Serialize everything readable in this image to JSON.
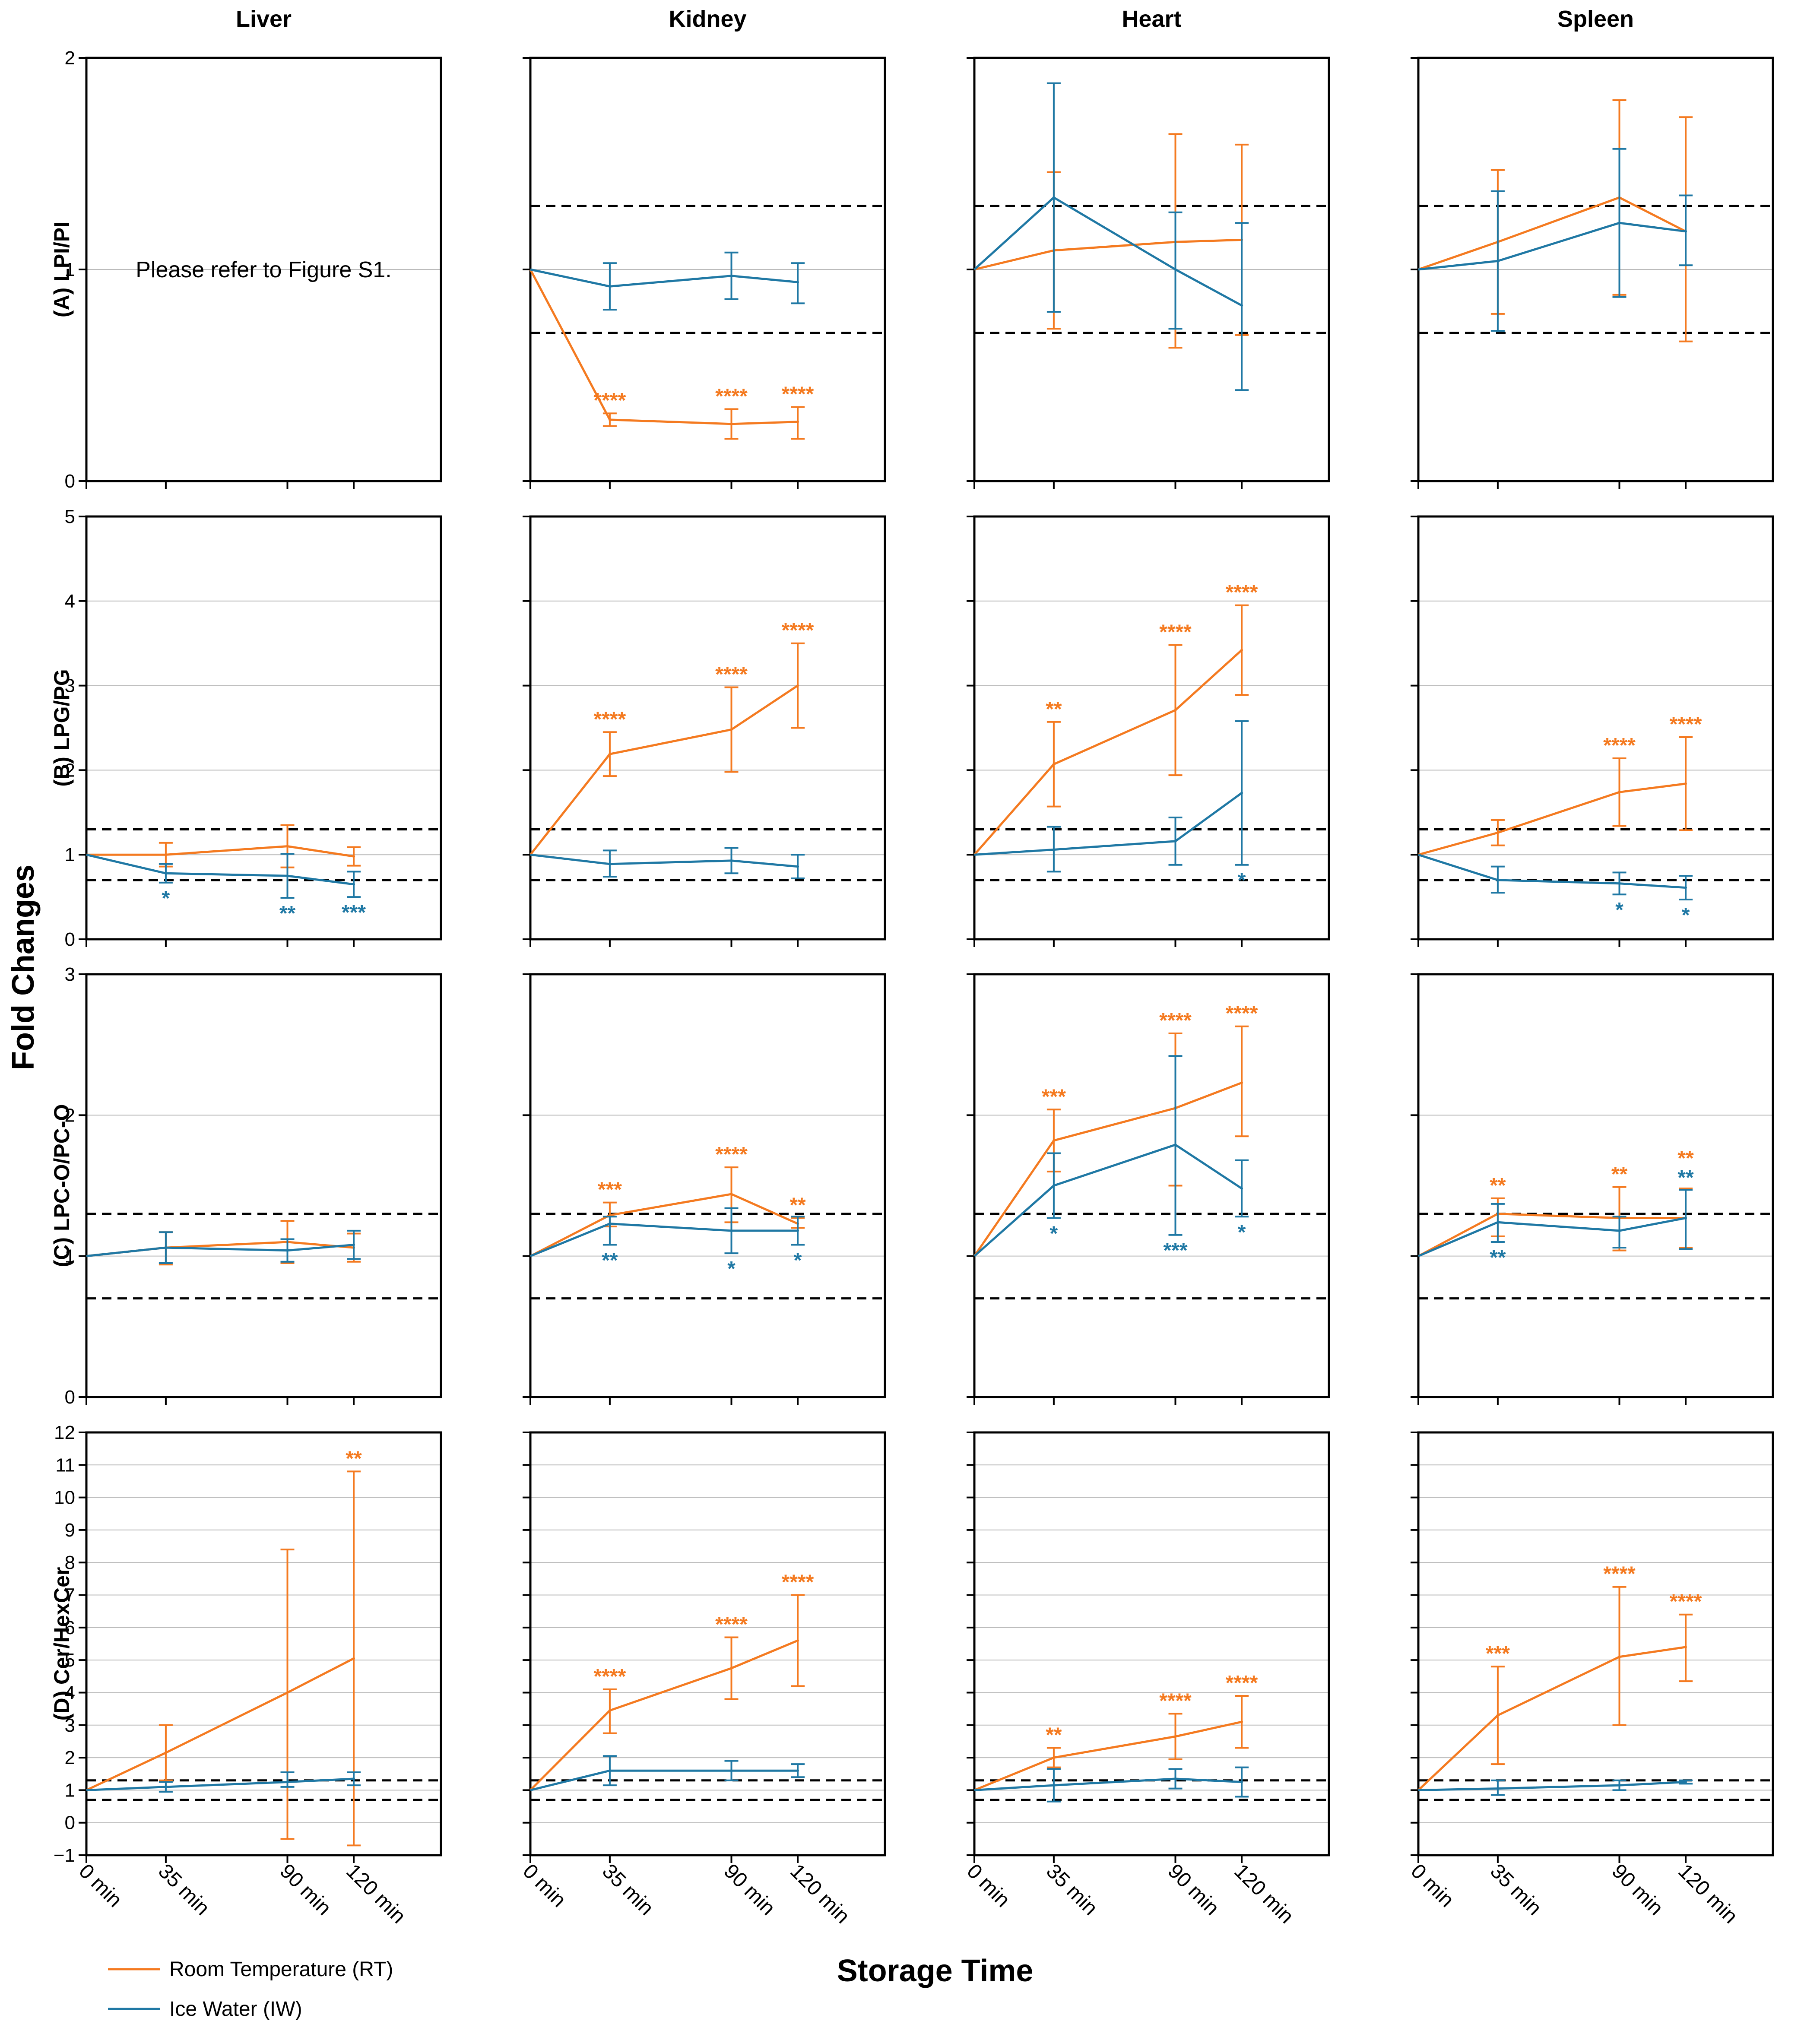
{
  "colors": {
    "rt": "#f47a20",
    "iw": "#1f78a4",
    "grid": "#bbbbbb",
    "threshold": "#000000"
  },
  "y_axis_title": "Fold Changes",
  "x_axis_title": "Storage Time",
  "legend": [
    {
      "label": "Room Temperature (RT)",
      "color": "#f47a20"
    },
    {
      "label": "Ice Water (IW)",
      "color": "#1f78a4"
    }
  ],
  "chart_data": {
    "type": "line",
    "columns": [
      "Liver",
      "Kidney",
      "Heart",
      "Spleen"
    ],
    "rows": [
      {
        "label": "(A) LPI/PI",
        "ylim": [
          0,
          2
        ],
        "ticks": [
          0,
          1,
          2
        ]
      },
      {
        "label": "(B) LPG/PG",
        "ylim": [
          0,
          5
        ],
        "ticks": [
          0,
          1,
          2,
          3,
          4,
          5
        ]
      },
      {
        "label": "(C) LPC-O/PC-O",
        "ylim": [
          0,
          3
        ],
        "ticks": [
          0,
          1,
          2,
          3
        ]
      },
      {
        "label": "(D) Cer/HexCer",
        "ylim": [
          -1,
          12
        ],
        "ticks": [
          -1,
          0,
          1,
          2,
          3,
          4,
          5,
          6,
          7,
          8,
          9,
          10,
          11,
          12
        ]
      }
    ],
    "x": [
      0,
      35,
      90,
      120
    ],
    "x_tick_labels": [
      "0 min",
      "35 min",
      "90 min",
      "120 min"
    ],
    "thresholds": [
      0.7,
      1.3
    ],
    "panels": [
      {
        "row": 0,
        "col": 0,
        "note": "Please refer to Figure S1.",
        "series": []
      },
      {
        "row": 0,
        "col": 1,
        "series": [
          {
            "name": "Room Temperature (RT)",
            "values": [
              1,
              0.29,
              0.27,
              0.28
            ],
            "lo": [
              1,
              0.26,
              0.2,
              0.2
            ],
            "hi": [
              1,
              0.32,
              0.34,
              0.35
            ],
            "stars": [
              "",
              "****",
              "****",
              "****"
            ]
          },
          {
            "name": "Ice Water (IW)",
            "values": [
              1,
              0.92,
              0.97,
              0.94
            ],
            "lo": [
              1,
              0.81,
              0.86,
              0.84
            ],
            "hi": [
              1,
              1.03,
              1.08,
              1.03
            ],
            "stars": [
              "",
              "",
              "",
              ""
            ]
          }
        ]
      },
      {
        "row": 0,
        "col": 2,
        "series": [
          {
            "name": "Room Temperature (RT)",
            "values": [
              1,
              1.09,
              1.13,
              1.14
            ],
            "lo": [
              1,
              0.72,
              0.63,
              0.69
            ],
            "hi": [
              1,
              1.46,
              1.64,
              1.59
            ],
            "stars": [
              "",
              "",
              "",
              ""
            ]
          },
          {
            "name": "Ice Water (IW)",
            "values": [
              1,
              1.34,
              1.0,
              0.83
            ],
            "lo": [
              1,
              0.8,
              0.72,
              0.43
            ],
            "hi": [
              1,
              1.88,
              1.27,
              1.22
            ],
            "stars": [
              "",
              "",
              "",
              ""
            ]
          }
        ]
      },
      {
        "row": 0,
        "col": 3,
        "series": [
          {
            "name": "Room Temperature (RT)",
            "values": [
              1,
              1.13,
              1.34,
              1.18
            ],
            "lo": [
              1,
              0.79,
              0.88,
              0.66
            ],
            "hi": [
              1,
              1.47,
              1.8,
              1.72
            ],
            "stars": [
              "",
              "",
              "",
              ""
            ]
          },
          {
            "name": "Ice Water (IW)",
            "values": [
              1,
              1.04,
              1.22,
              1.18
            ],
            "lo": [
              1,
              0.71,
              0.87,
              1.02
            ],
            "hi": [
              1,
              1.37,
              1.57,
              1.35
            ],
            "stars": [
              "",
              "",
              "",
              ""
            ]
          }
        ]
      },
      {
        "row": 1,
        "col": 0,
        "series": [
          {
            "name": "Room Temperature (RT)",
            "values": [
              1,
              1.0,
              1.1,
              0.98
            ],
            "lo": [
              1,
              0.86,
              0.85,
              0.87
            ],
            "hi": [
              1,
              1.14,
              1.35,
              1.09
            ],
            "stars": [
              "",
              "",
              "",
              ""
            ]
          },
          {
            "name": "Ice Water (IW)",
            "values": [
              1,
              0.78,
              0.75,
              0.65
            ],
            "lo": [
              1,
              0.67,
              0.49,
              0.5
            ],
            "hi": [
              1,
              0.89,
              1.01,
              0.8
            ],
            "stars": [
              "",
              "*",
              "**",
              "***"
            ]
          }
        ]
      },
      {
        "row": 1,
        "col": 1,
        "series": [
          {
            "name": "Room Temperature (RT)",
            "values": [
              1,
              2.19,
              2.48,
              3.0
            ],
            "lo": [
              1,
              1.93,
              1.98,
              2.5
            ],
            "hi": [
              1,
              2.45,
              2.98,
              3.5
            ],
            "stars": [
              "",
              "****",
              "****",
              "****"
            ]
          },
          {
            "name": "Ice Water (IW)",
            "values": [
              1,
              0.89,
              0.93,
              0.86
            ],
            "lo": [
              1,
              0.74,
              0.78,
              0.72
            ],
            "hi": [
              1,
              1.05,
              1.08,
              1.0
            ],
            "stars": [
              "",
              "",
              "",
              ""
            ]
          }
        ]
      },
      {
        "row": 1,
        "col": 2,
        "series": [
          {
            "name": "Room Temperature (RT)",
            "values": [
              1,
              2.07,
              2.71,
              3.42
            ],
            "lo": [
              1,
              1.57,
              1.94,
              2.89
            ],
            "hi": [
              1,
              2.57,
              3.48,
              3.95
            ],
            "stars": [
              "",
              "**",
              "****",
              "****"
            ]
          },
          {
            "name": "Ice Water (IW)",
            "values": [
              1,
              1.06,
              1.16,
              1.73
            ],
            "lo": [
              1,
              0.8,
              0.88,
              0.88
            ],
            "hi": [
              1,
              1.33,
              1.44,
              2.58
            ],
            "stars": [
              "",
              "",
              "",
              "*"
            ]
          }
        ]
      },
      {
        "row": 1,
        "col": 3,
        "series": [
          {
            "name": "Room Temperature (RT)",
            "values": [
              1,
              1.26,
              1.74,
              1.84
            ],
            "lo": [
              1,
              1.11,
              1.34,
              1.29
            ],
            "hi": [
              1,
              1.41,
              2.14,
              2.39
            ],
            "stars": [
              "",
              "",
              "****",
              "****"
            ]
          },
          {
            "name": "Ice Water (IW)",
            "values": [
              1,
              0.7,
              0.66,
              0.61
            ],
            "lo": [
              1,
              0.55,
              0.53,
              0.47
            ],
            "hi": [
              1,
              0.86,
              0.79,
              0.75
            ],
            "stars": [
              "",
              "",
              "*",
              "*"
            ]
          }
        ]
      },
      {
        "row": 2,
        "col": 0,
        "series": [
          {
            "name": "Room Temperature (RT)",
            "values": [
              1,
              1.06,
              1.1,
              1.06
            ],
            "lo": [
              1,
              0.94,
              0.95,
              0.96
            ],
            "hi": [
              1,
              1.17,
              1.25,
              1.16
            ],
            "stars": [
              "",
              "",
              "",
              ""
            ]
          },
          {
            "name": "Ice Water (IW)",
            "values": [
              1,
              1.06,
              1.04,
              1.08
            ],
            "lo": [
              1,
              0.95,
              0.96,
              0.98
            ],
            "hi": [
              1,
              1.17,
              1.12,
              1.18
            ],
            "stars": [
              "",
              "",
              "",
              ""
            ]
          }
        ]
      },
      {
        "row": 2,
        "col": 1,
        "series": [
          {
            "name": "Room Temperature (RT)",
            "values": [
              1,
              1.29,
              1.44,
              1.23
            ],
            "lo": [
              1,
              1.21,
              1.24,
              1.2
            ],
            "hi": [
              1,
              1.38,
              1.63,
              1.27
            ],
            "stars": [
              "",
              "***",
              "****",
              "**"
            ]
          },
          {
            "name": "Ice Water (IW)",
            "values": [
              1,
              1.23,
              1.18,
              1.18
            ],
            "lo": [
              1,
              1.08,
              1.02,
              1.08
            ],
            "hi": [
              1,
              1.28,
              1.34,
              1.28
            ],
            "stars": [
              "",
              "**",
              "*",
              "*"
            ]
          }
        ]
      },
      {
        "row": 2,
        "col": 2,
        "series": [
          {
            "name": "Room Temperature (RT)",
            "values": [
              1,
              1.82,
              2.05,
              2.23
            ],
            "lo": [
              1,
              1.6,
              1.5,
              1.85
            ],
            "hi": [
              1,
              2.04,
              2.58,
              2.63
            ],
            "stars": [
              "",
              "***",
              "****",
              "****"
            ]
          },
          {
            "name": "Ice Water (IW)",
            "values": [
              1,
              1.5,
              1.79,
              1.48
            ],
            "lo": [
              1,
              1.27,
              1.15,
              1.28
            ],
            "hi": [
              1,
              1.73,
              2.42,
              1.68
            ],
            "stars": [
              "",
              "*",
              "***",
              "*"
            ]
          }
        ]
      },
      {
        "row": 2,
        "col": 3,
        "series": [
          {
            "name": "Room Temperature (RT)",
            "values": [
              1,
              1.3,
              1.27,
              1.27
            ],
            "lo": [
              1,
              1.14,
              1.04,
              1.06
            ],
            "hi": [
              1,
              1.41,
              1.49,
              1.48
            ],
            "stars": [
              "",
              "**",
              "**",
              "**"
            ]
          },
          {
            "name": "Ice Water (IW)",
            "values": [
              1,
              1.24,
              1.18,
              1.27
            ],
            "lo": [
              1,
              1.1,
              1.06,
              1.05
            ],
            "hi": [
              1,
              1.37,
              1.28,
              1.47
            ],
            "stars": [
              "",
              "**",
              "",
              "**"
            ]
          }
        ]
      },
      {
        "row": 3,
        "col": 0,
        "series": [
          {
            "name": "Room Temperature (RT)",
            "values": [
              1,
              2.15,
              4.0,
              5.05
            ],
            "lo": [
              1,
              1.3,
              -0.5,
              -0.7
            ],
            "hi": [
              1,
              3.0,
              8.4,
              10.8
            ],
            "stars": [
              "",
              "",
              "",
              "**"
            ]
          },
          {
            "name": "Ice Water (IW)",
            "values": [
              1,
              1.1,
              1.25,
              1.35
            ],
            "lo": [
              1,
              0.95,
              1.1,
              1.15
            ],
            "hi": [
              1,
              1.25,
              1.55,
              1.55
            ],
            "stars": [
              "",
              "",
              "",
              ""
            ]
          }
        ]
      },
      {
        "row": 3,
        "col": 1,
        "series": [
          {
            "name": "Room Temperature (RT)",
            "values": [
              1,
              3.45,
              4.75,
              5.6
            ],
            "lo": [
              1,
              2.75,
              3.8,
              4.2
            ],
            "hi": [
              1,
              4.1,
              5.7,
              7.0
            ],
            "stars": [
              "",
              "****",
              "****",
              "****"
            ]
          },
          {
            "name": "Ice Water (IW)",
            "values": [
              1,
              1.6,
              1.6,
              1.6
            ],
            "lo": [
              1,
              1.15,
              1.3,
              1.4
            ],
            "hi": [
              1,
              2.05,
              1.9,
              1.8
            ],
            "stars": [
              "",
              "",
              "",
              ""
            ]
          }
        ]
      },
      {
        "row": 3,
        "col": 2,
        "series": [
          {
            "name": "Room Temperature (RT)",
            "values": [
              1,
              2.0,
              2.65,
              3.1
            ],
            "lo": [
              1,
              1.7,
              1.95,
              2.3
            ],
            "hi": [
              1,
              2.3,
              3.35,
              3.9
            ],
            "stars": [
              "",
              "**",
              "****",
              "****"
            ]
          },
          {
            "name": "Ice Water (IW)",
            "values": [
              1,
              1.15,
              1.35,
              1.25
            ],
            "lo": [
              1,
              0.65,
              1.05,
              0.8
            ],
            "hi": [
              1,
              1.65,
              1.65,
              1.7
            ],
            "stars": [
              "",
              "",
              "",
              ""
            ]
          }
        ]
      },
      {
        "row": 3,
        "col": 3,
        "series": [
          {
            "name": "Room Temperature (RT)",
            "values": [
              1,
              3.3,
              5.1,
              5.4
            ],
            "lo": [
              1,
              1.8,
              3.0,
              4.35
            ],
            "hi": [
              1,
              4.8,
              7.25,
              6.4
            ],
            "stars": [
              "",
              "***",
              "****",
              "****"
            ]
          },
          {
            "name": "Ice Water (IW)",
            "values": [
              1,
              1.05,
              1.15,
              1.25
            ],
            "lo": [
              1,
              0.85,
              1.0,
              1.2
            ],
            "hi": [
              1,
              1.3,
              1.3,
              1.3
            ],
            "stars": [
              "",
              "",
              "",
              ""
            ]
          }
        ]
      }
    ]
  }
}
